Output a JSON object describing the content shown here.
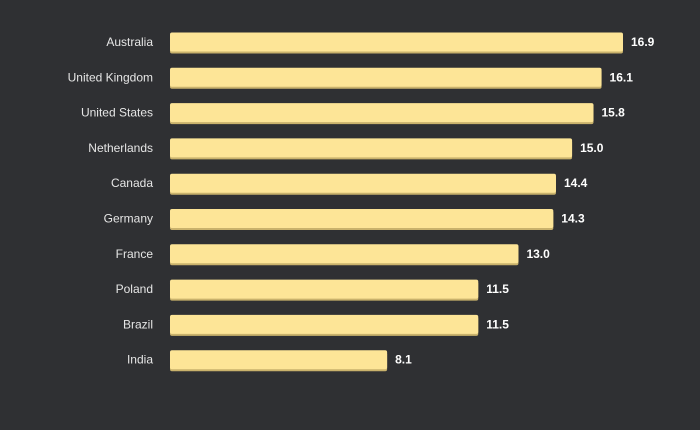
{
  "chart_data": {
    "type": "bar",
    "orientation": "horizontal",
    "categories": [
      "Australia",
      "United Kingdom",
      "United States",
      "Netherlands",
      "Canada",
      "Germany",
      "France",
      "Poland",
      "Brazil",
      "India"
    ],
    "values": [
      16.9,
      16.1,
      15.8,
      15.0,
      14.4,
      14.3,
      13.0,
      11.5,
      11.5,
      8.1
    ],
    "value_labels": [
      "16.9",
      "16.1",
      "15.8",
      "15.0",
      "14.4",
      "14.3",
      "13.0",
      "11.5",
      "11.5",
      "8.1"
    ],
    "xlim": [
      0,
      16.9
    ],
    "grid": false,
    "colors": {
      "bar": "#fde597",
      "bar_shadow": "#c9b26c",
      "background": "#2f3033",
      "category_text": "#e6e6e6",
      "value_text": "#ffffff"
    }
  }
}
